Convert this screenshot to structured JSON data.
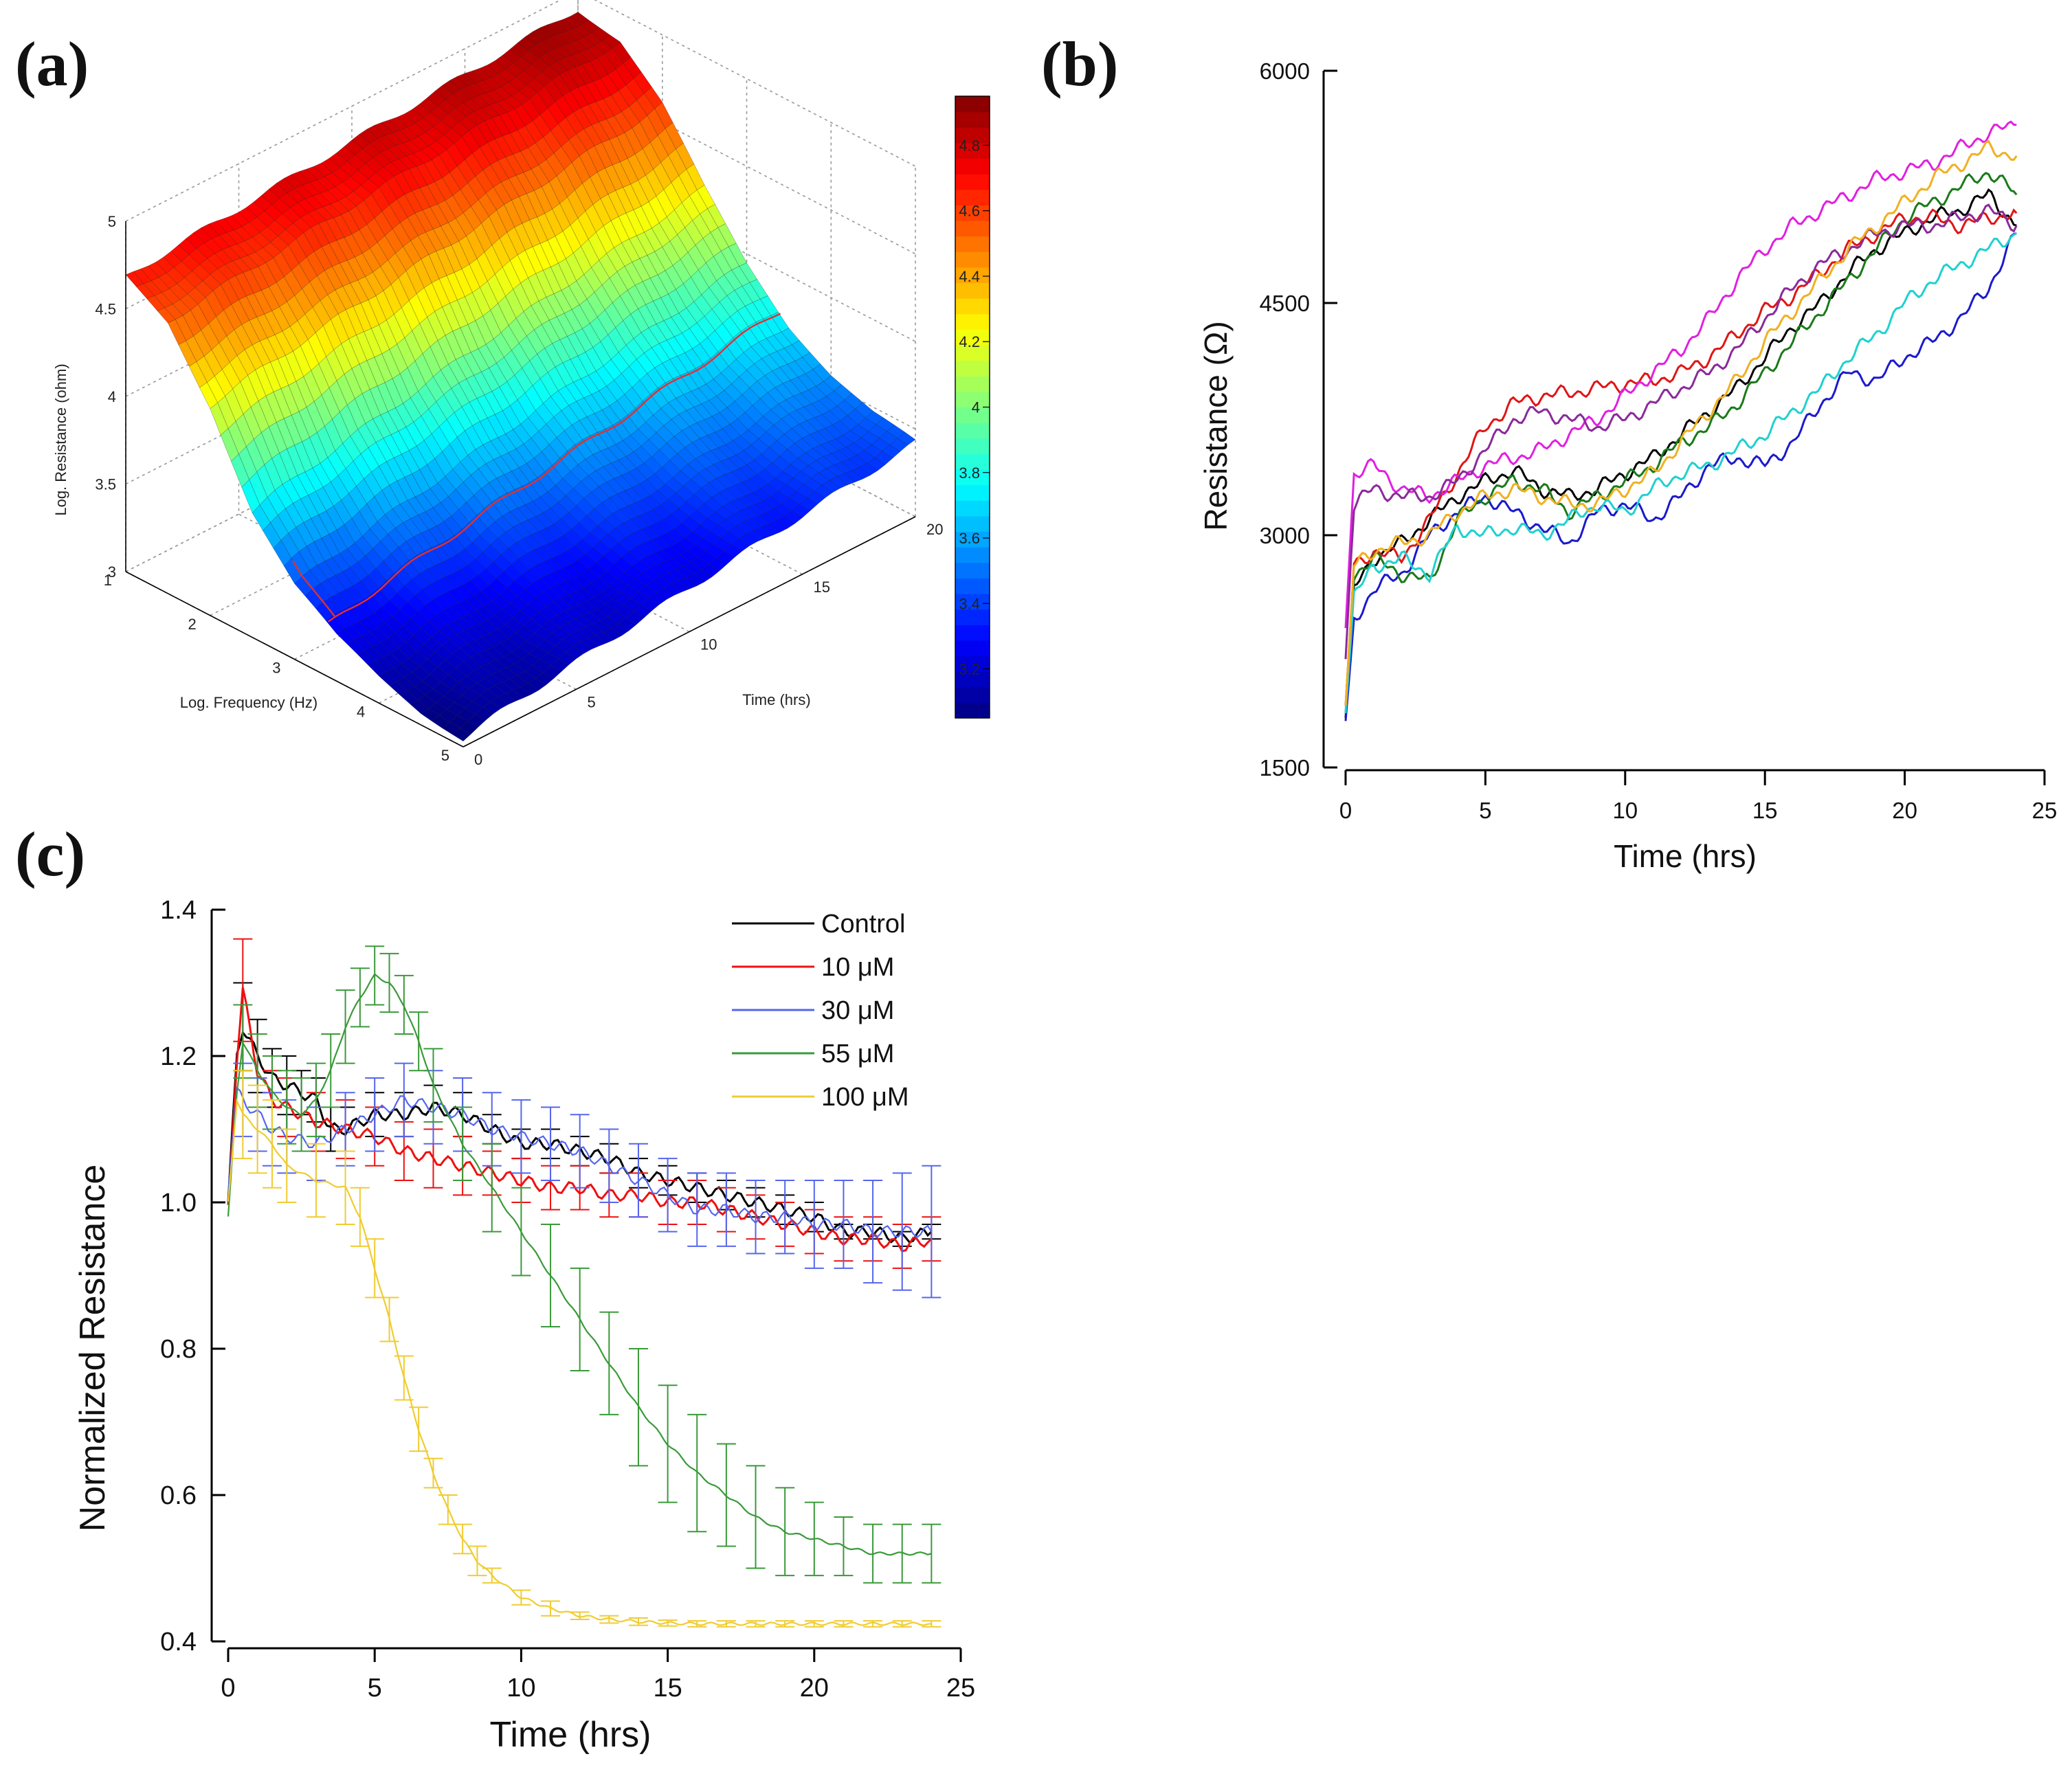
{
  "figure": {
    "panel_labels": [
      "(a)",
      "(b)",
      "(c)"
    ]
  },
  "chart_data": [
    {
      "id": "a",
      "type": "surface3d",
      "title": "",
      "xlabel": "Log. Frequency (Hz)",
      "ylabel": "Time (hrs)",
      "zlabel": "Log. Resistance (ohm)",
      "x_ticks": [
        "1",
        "2",
        "3",
        "4",
        "5"
      ],
      "y_ticks": [
        "0",
        "5",
        "10",
        "15",
        "20"
      ],
      "z_ticks": [
        "3",
        "3.5",
        "4",
        "4.5",
        "5"
      ],
      "xlim": [
        1,
        5
      ],
      "ylim": [
        0,
        20
      ],
      "zlim": [
        3,
        5
      ],
      "surface_model": {
        "description": "log resistance vs log frequency and time",
        "log_frequency": [
          1.0,
          1.5,
          2.0,
          2.5,
          3.0,
          3.5,
          4.0,
          4.5,
          5.0
        ],
        "log_resistance_at_t0": [
          4.68,
          4.55,
          4.2,
          3.72,
          3.42,
          3.25,
          3.15,
          3.08,
          3.05
        ],
        "log_resistance_at_t20": [
          4.9,
          4.84,
          4.6,
          4.25,
          3.95,
          3.72,
          3.57,
          3.47,
          3.42
        ]
      },
      "highlight_line": {
        "color": "#e03030",
        "log_frequency": 3.4
      },
      "colorbar": {
        "ticks": [
          "3.2",
          "3.4",
          "3.6",
          "3.8",
          "4",
          "4.2",
          "4.4",
          "4.6",
          "4.8"
        ],
        "range": [
          3.05,
          4.95
        ],
        "colormap": "jet"
      }
    },
    {
      "id": "b",
      "type": "line",
      "title": "",
      "xlabel": "Time (hrs)",
      "ylabel": "Resistance (Ω)",
      "x_ticks": [
        "0",
        "5",
        "10",
        "15",
        "20",
        "25"
      ],
      "y_ticks": [
        "1500",
        "3000",
        "4500",
        "6000"
      ],
      "xlim": [
        0,
        25
      ],
      "ylim": [
        1500,
        6000
      ],
      "series": [
        {
          "name": "black",
          "color": "#000000",
          "x": [
            0,
            0.3,
            1,
            2,
            3,
            4,
            5,
            6,
            7,
            8,
            9,
            10,
            11,
            12,
            13,
            14,
            15,
            16,
            17,
            18,
            19,
            20,
            21,
            22,
            23,
            24
          ],
          "y": [
            1820,
            2650,
            2850,
            2950,
            3100,
            3250,
            3350,
            3420,
            3300,
            3250,
            3300,
            3400,
            3500,
            3650,
            3800,
            3950,
            4150,
            4350,
            4500,
            4700,
            4850,
            4950,
            5050,
            5100,
            5200,
            5000
          ]
        },
        {
          "name": "red",
          "color": "#e01515",
          "x": [
            0,
            0.3,
            1,
            2,
            3,
            4,
            5,
            6,
            7,
            8,
            9,
            10,
            11,
            12,
            13,
            14,
            15,
            16,
            17,
            18,
            19,
            20,
            21,
            22,
            23,
            24
          ],
          "y": [
            1900,
            2800,
            2900,
            2850,
            3100,
            3400,
            3700,
            3850,
            3900,
            3920,
            3950,
            3980,
            4000,
            4050,
            4150,
            4300,
            4450,
            4550,
            4700,
            4850,
            4950,
            5050,
            5050,
            5000,
            5050,
            5080
          ]
        },
        {
          "name": "blue",
          "color": "#1a1acc",
          "x": [
            0,
            0.3,
            1,
            2,
            3,
            4,
            5,
            6,
            7,
            8,
            9,
            10,
            11,
            12,
            13,
            14,
            15,
            16,
            17,
            18,
            19,
            20,
            21,
            22,
            23,
            24
          ],
          "y": [
            1800,
            2450,
            2650,
            2750,
            3000,
            3150,
            3250,
            3150,
            3050,
            2950,
            3150,
            3200,
            3100,
            3250,
            3450,
            3500,
            3450,
            3600,
            3850,
            4050,
            4000,
            4150,
            4250,
            4400,
            4600,
            4950
          ]
        },
        {
          "name": "green",
          "color": "#1a7a1a",
          "x": [
            0,
            0.3,
            1,
            2,
            3,
            4,
            5,
            6,
            7,
            8,
            9,
            10,
            11,
            12,
            13,
            14,
            15,
            16,
            17,
            18,
            19,
            20,
            21,
            22,
            23,
            24
          ],
          "y": [
            1850,
            2750,
            2850,
            2750,
            2700,
            3100,
            3250,
            3350,
            3300,
            3150,
            3250,
            3350,
            3450,
            3600,
            3700,
            3850,
            4050,
            4250,
            4450,
            4650,
            4850,
            5050,
            5150,
            5250,
            5350,
            5200
          ]
        },
        {
          "name": "magenta",
          "color": "#e020e0",
          "x": [
            0,
            0.3,
            1,
            2,
            3,
            4,
            5,
            6,
            7,
            8,
            9,
            10,
            11,
            12,
            13,
            14,
            15,
            16,
            17,
            18,
            19,
            20,
            21,
            22,
            23,
            24
          ],
          "y": [
            2400,
            3400,
            3450,
            3300,
            3250,
            3350,
            3450,
            3500,
            3550,
            3650,
            3750,
            3900,
            4050,
            4200,
            4400,
            4650,
            4850,
            5000,
            5100,
            5200,
            5300,
            5350,
            5400,
            5500,
            5600,
            5650
          ]
        },
        {
          "name": "purple",
          "color": "#8a2a9a",
          "x": [
            0,
            0.3,
            1,
            2,
            3,
            4,
            5,
            6,
            7,
            8,
            9,
            10,
            11,
            12,
            13,
            14,
            15,
            16,
            17,
            18,
            19,
            20,
            21,
            22,
            23,
            24
          ],
          "y": [
            2200,
            3200,
            3300,
            3250,
            3250,
            3350,
            3550,
            3750,
            3800,
            3750,
            3700,
            3750,
            3850,
            3950,
            4050,
            4200,
            4400,
            4600,
            4750,
            4850,
            4950,
            5000,
            5000,
            5050,
            5100,
            5000
          ]
        },
        {
          "name": "cyan",
          "color": "#20d0d0",
          "x": [
            0,
            0.3,
            1,
            2,
            3,
            4,
            5,
            6,
            7,
            8,
            9,
            10,
            11,
            12,
            13,
            14,
            15,
            16,
            17,
            18,
            19,
            20,
            21,
            22,
            23,
            24
          ],
          "y": [
            1850,
            2600,
            2800,
            2850,
            2750,
            3050,
            3000,
            3050,
            3000,
            3100,
            3200,
            3150,
            3300,
            3400,
            3450,
            3550,
            3650,
            3800,
            3950,
            4150,
            4300,
            4500,
            4650,
            4750,
            4850,
            4950
          ]
        },
        {
          "name": "orange",
          "color": "#f0b020",
          "x": [
            0,
            0.3,
            1,
            2,
            3,
            4,
            5,
            6,
            7,
            8,
            9,
            10,
            11,
            12,
            13,
            14,
            15,
            16,
            17,
            18,
            19,
            20,
            21,
            22,
            23,
            24
          ],
          "y": [
            1900,
            2800,
            2900,
            2950,
            3000,
            3150,
            3250,
            3300,
            3250,
            3200,
            3200,
            3300,
            3400,
            3600,
            3800,
            4000,
            4250,
            4450,
            4650,
            4850,
            5000,
            5150,
            5300,
            5400,
            5500,
            5450
          ]
        }
      ]
    },
    {
      "id": "c",
      "type": "line",
      "title": "",
      "xlabel": "Time (hrs)",
      "ylabel": "Normalized Resistance",
      "x_ticks": [
        "0",
        "5",
        "10",
        "15",
        "20",
        "25"
      ],
      "y_ticks": [
        "0.4",
        "0.6",
        "0.8",
        "1.0",
        "1.2",
        "1.4"
      ],
      "xlim": [
        0,
        25
      ],
      "ylim": [
        0.4,
        1.4
      ],
      "legend": "top-right",
      "series": [
        {
          "name": "Control",
          "color": "#000000",
          "x": [
            0,
            0.3,
            0.5,
            1,
            1.5,
            2,
            2.5,
            3,
            3.5,
            4,
            5,
            6,
            7,
            8,
            9,
            10,
            11,
            12,
            13,
            14,
            15,
            16,
            17,
            18,
            19,
            20,
            21,
            22,
            23,
            24
          ],
          "y": [
            1.0,
            1.2,
            1.24,
            1.2,
            1.17,
            1.16,
            1.15,
            1.14,
            1.1,
            1.1,
            1.12,
            1.12,
            1.13,
            1.12,
            1.1,
            1.08,
            1.08,
            1.07,
            1.06,
            1.04,
            1.03,
            1.02,
            1.01,
            1.0,
            0.99,
            0.98,
            0.96,
            0.96,
            0.95,
            0.96
          ],
          "err": [
            0.03,
            0.06,
            0.06,
            0.05,
            0.04,
            0.04,
            0.03,
            0.03,
            0.03,
            0.03,
            0.03,
            0.03,
            0.03,
            0.03,
            0.02,
            0.02,
            0.02,
            0.02,
            0.02,
            0.02,
            0.02,
            0.02,
            0.02,
            0.02,
            0.02,
            0.02,
            0.01,
            0.01,
            0.01,
            0.01
          ]
        },
        {
          "name": "10 μM",
          "color": "#ee1111",
          "x": [
            0,
            0.3,
            0.5,
            1,
            1.5,
            2,
            3,
            4,
            5,
            6,
            7,
            8,
            9,
            10,
            11,
            12,
            13,
            14,
            15,
            16,
            17,
            18,
            19,
            20,
            21,
            22,
            23,
            24
          ],
          "y": [
            0.99,
            1.2,
            1.29,
            1.18,
            1.14,
            1.13,
            1.11,
            1.1,
            1.09,
            1.07,
            1.06,
            1.05,
            1.04,
            1.03,
            1.02,
            1.02,
            1.01,
            1.01,
            1.0,
            1.0,
            0.99,
            0.98,
            0.97,
            0.96,
            0.95,
            0.95,
            0.94,
            0.95
          ],
          "err": [
            0.05,
            0.06,
            0.07,
            0.05,
            0.04,
            0.04,
            0.04,
            0.04,
            0.04,
            0.04,
            0.04,
            0.04,
            0.03,
            0.03,
            0.03,
            0.03,
            0.03,
            0.03,
            0.03,
            0.03,
            0.03,
            0.03,
            0.03,
            0.03,
            0.03,
            0.03,
            0.03,
            0.03
          ]
        },
        {
          "name": "30 μM",
          "color": "#5566ee",
          "x": [
            0,
            0.3,
            0.5,
            1,
            1.5,
            2,
            3,
            4,
            5,
            6,
            7,
            8,
            9,
            10,
            11,
            12,
            13,
            14,
            15,
            16,
            17,
            18,
            19,
            20,
            21,
            22,
            23,
            24
          ],
          "y": [
            1.02,
            1.15,
            1.14,
            1.12,
            1.1,
            1.09,
            1.08,
            1.1,
            1.12,
            1.14,
            1.13,
            1.12,
            1.1,
            1.09,
            1.08,
            1.07,
            1.05,
            1.03,
            1.01,
            0.99,
            0.99,
            0.98,
            0.98,
            0.97,
            0.97,
            0.96,
            0.96,
            0.96
          ],
          "err": [
            0.05,
            0.05,
            0.05,
            0.05,
            0.05,
            0.05,
            0.05,
            0.05,
            0.05,
            0.05,
            0.05,
            0.05,
            0.05,
            0.05,
            0.05,
            0.05,
            0.05,
            0.05,
            0.05,
            0.05,
            0.05,
            0.05,
            0.05,
            0.06,
            0.06,
            0.07,
            0.08,
            0.09
          ]
        },
        {
          "name": "55 μM",
          "color": "#3a9a3a",
          "x": [
            0,
            0.3,
            0.5,
            1,
            1.5,
            2,
            2.5,
            3,
            3.5,
            4,
            4.5,
            5,
            5.5,
            6,
            6.5,
            7,
            8,
            9,
            10,
            11,
            12,
            13,
            14,
            15,
            16,
            17,
            18,
            19,
            20,
            21,
            22,
            23,
            24
          ],
          "y": [
            0.98,
            1.15,
            1.22,
            1.18,
            1.15,
            1.13,
            1.12,
            1.14,
            1.18,
            1.24,
            1.28,
            1.31,
            1.3,
            1.27,
            1.22,
            1.16,
            1.08,
            1.02,
            0.96,
            0.9,
            0.84,
            0.78,
            0.72,
            0.67,
            0.63,
            0.6,
            0.57,
            0.55,
            0.54,
            0.53,
            0.52,
            0.52,
            0.52
          ],
          "err": [
            0.05,
            0.05,
            0.05,
            0.05,
            0.05,
            0.05,
            0.05,
            0.05,
            0.05,
            0.05,
            0.04,
            0.04,
            0.04,
            0.04,
            0.04,
            0.05,
            0.05,
            0.06,
            0.06,
            0.07,
            0.07,
            0.07,
            0.08,
            0.08,
            0.08,
            0.07,
            0.07,
            0.06,
            0.05,
            0.04,
            0.04,
            0.04,
            0.04
          ]
        },
        {
          "name": "100 μM",
          "color": "#f0cc30",
          "x": [
            0,
            0.3,
            0.5,
            1,
            1.5,
            2,
            3,
            4,
            4.5,
            5,
            5.5,
            6,
            6.5,
            7,
            7.5,
            8,
            8.5,
            9,
            10,
            11,
            12,
            13,
            14,
            15,
            16,
            17,
            18,
            19,
            20,
            21,
            22,
            23,
            24
          ],
          "y": [
            1.0,
            1.14,
            1.12,
            1.1,
            1.08,
            1.05,
            1.03,
            1.02,
            0.98,
            0.91,
            0.84,
            0.76,
            0.69,
            0.63,
            0.58,
            0.54,
            0.51,
            0.49,
            0.46,
            0.445,
            0.435,
            0.43,
            0.427,
            0.425,
            0.424,
            0.424,
            0.424,
            0.424,
            0.424,
            0.424,
            0.424,
            0.424,
            0.424
          ],
          "err": [
            0.05,
            0.06,
            0.06,
            0.06,
            0.06,
            0.05,
            0.05,
            0.05,
            0.04,
            0.04,
            0.03,
            0.03,
            0.03,
            0.02,
            0.02,
            0.02,
            0.02,
            0.01,
            0.01,
            0.01,
            0.005,
            0.005,
            0.005,
            0.004,
            0.004,
            0.004,
            0.004,
            0.004,
            0.004,
            0.004,
            0.004,
            0.004,
            0.004
          ]
        }
      ]
    }
  ]
}
